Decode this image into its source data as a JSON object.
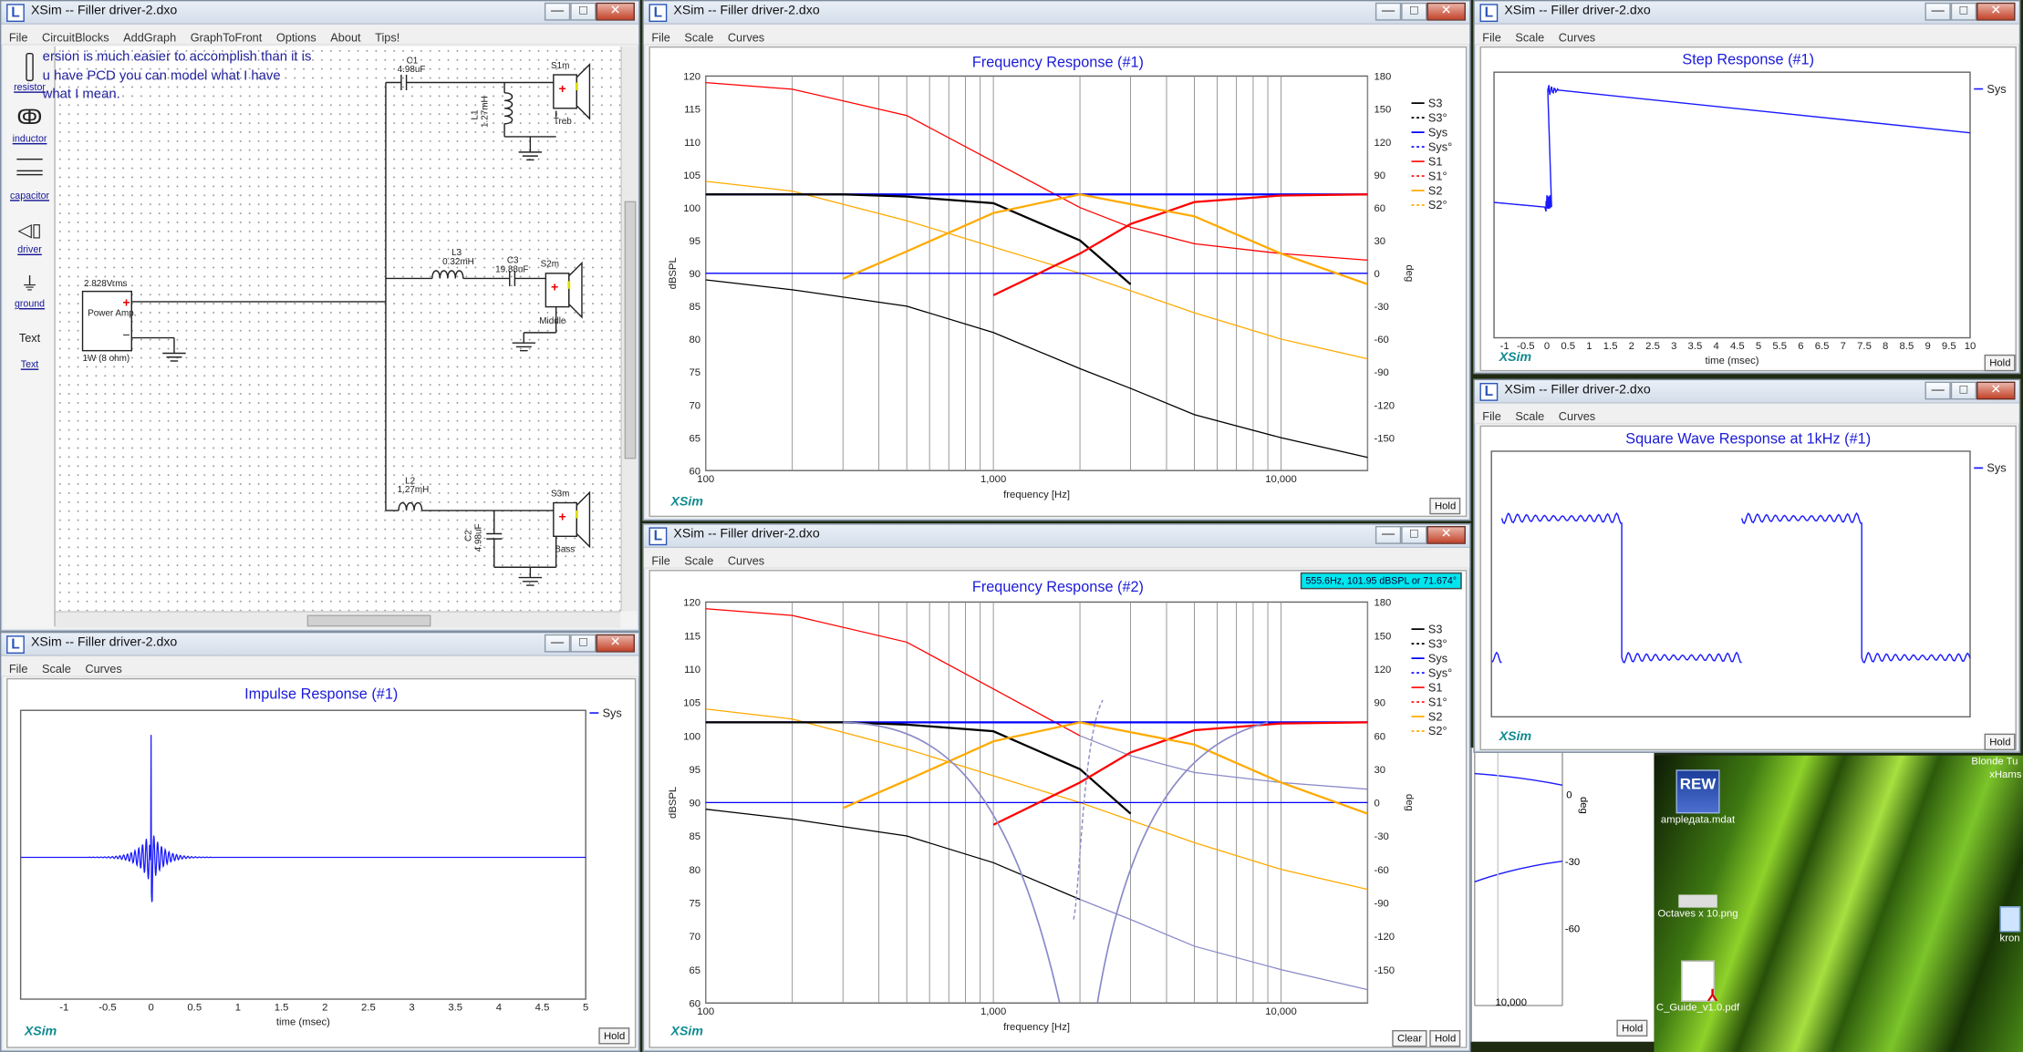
{
  "app": {
    "window_title": "XSim -- Filler driver-2.dxo",
    "icon_letter": "L"
  },
  "wbuttons": {
    "min": "—",
    "max": "□",
    "close": "✕"
  },
  "menus": {
    "main": [
      "File",
      "CircuitBlocks",
      "AddGraph",
      "GraphToFront",
      "Options",
      "About",
      "Tips!"
    ],
    "graph": [
      "File",
      "Scale",
      "Curves"
    ]
  },
  "toolbox": [
    {
      "label": "resistor"
    },
    {
      "label": "inductor"
    },
    {
      "label": "capacitor"
    },
    {
      "label": "driver"
    },
    {
      "label": "ground"
    },
    {
      "label": "Text",
      "plain": true
    },
    {
      "label": "Text"
    }
  ],
  "note_lines": [
    "ersion is much easier to accomplish than it is",
    "u have PCD you can model what I have",
    "what I mean."
  ],
  "schematic": {
    "amp_top": "2.828Vrms",
    "amp_box": "Power Amp.",
    "amp_bottom": "1W (8 ohm)",
    "C1": "C1",
    "C1v": "4.98uF",
    "L1": "L1",
    "L1v": "1.27mH",
    "S1m": "S1m",
    "Treb": "Treb",
    "L3": "L3",
    "L3v": "0.32mH",
    "C3": "C3",
    "C3v": "19.88uF",
    "S2m": "S2m",
    "Middle": "Middle",
    "L2": "L2",
    "L2v": "1.27mH",
    "C2": "C2",
    "C2v": "4.98uF",
    "S3m": "S3m",
    "Bass": "Bass"
  },
  "legend": [
    "S3",
    "S3°",
    "Sys",
    "Sys°",
    "S1",
    "S1°",
    "S2",
    "S2°"
  ],
  "colors": {
    "S3": "#000000",
    "Sys": "#0000ff",
    "S1": "#ff0000",
    "S2": "#ffaa00",
    "phase2": "#8a8ac8"
  },
  "freq1": {
    "title": "Frequency Response (#1)",
    "ylabel": "dBSPL",
    "y2label": "deg",
    "xlabel": "frequency [Hz]",
    "hold": "Hold"
  },
  "freq2": {
    "title": "Frequency Response (#2)",
    "ylabel": "dBSPL",
    "y2label": "deg",
    "xlabel": "frequency [Hz]",
    "hold": "Hold",
    "clear": "Clear",
    "tooltip": "555.6Hz, 101.95 dBSPL or 71.674°"
  },
  "step": {
    "title": "Step Response (#1)",
    "xlabel": "time (msec)",
    "legend": "Sys",
    "hold": "Hold"
  },
  "square": {
    "title": "Square Wave Response at 1kHz (#1)",
    "legend": "Sys",
    "hold": "Hold"
  },
  "impulse": {
    "title": "Impulse Response (#1)",
    "xlabel": "time (msec)",
    "legend": "Sys",
    "hold": "Hold"
  },
  "ghost": {
    "hold": "Hold",
    "x_tick": "10,000",
    "y2ticks": [
      "0",
      "-30",
      "-60"
    ],
    "y2label": "deg"
  },
  "brand": "XSim",
  "desktop": [
    {
      "label": "amplедata.mdat",
      "icon": "REW"
    },
    {
      "label": "Octaves x 10.png"
    },
    {
      "label": "C_Guide_v1.0.pdf"
    }
  ],
  "desktop_right": {
    "line1": "Blonde Tu",
    "line2": "xHams",
    "line3": "kron"
  },
  "chart_data": [
    {
      "type": "line",
      "title": "Frequency Response (#1)",
      "xlabel": "frequency [Hz]",
      "ylabel": "dBSPL",
      "y2label": "deg",
      "xscale": "log",
      "xlim": [
        100,
        20000
      ],
      "ylim": [
        60,
        120
      ],
      "y2lim": [
        -180,
        180
      ],
      "xticks": [
        "100",
        "1,000",
        "10,000"
      ],
      "yticks": [
        60,
        65,
        70,
        75,
        80,
        85,
        90,
        95,
        100,
        105,
        110,
        115,
        120
      ],
      "y2ticks": [
        -150,
        -120,
        -90,
        -60,
        -30,
        0,
        30,
        60,
        90,
        120,
        150,
        180
      ],
      "series": [
        {
          "name": "S1",
          "curve": "mag",
          "x": [
            100,
            200,
            500,
            1000,
            2000,
            3000,
            5000,
            10000,
            20000
          ],
          "y": [
            119,
            118,
            114,
            107,
            100,
            97,
            94.5,
            93,
            92
          ]
        },
        {
          "name": "S2",
          "curve": "mag",
          "x": [
            100,
            200,
            500,
            1000,
            2000,
            5000,
            10000,
            20000
          ],
          "y": [
            104,
            102.5,
            98,
            94,
            90,
            84,
            80,
            77
          ]
        },
        {
          "name": "S3",
          "curve": "mag",
          "x": [
            100,
            200,
            500,
            1000,
            2000,
            3000,
            5000,
            10000,
            20000
          ],
          "y": [
            89,
            87.5,
            85,
            81,
            75.5,
            72.5,
            68.5,
            65,
            62
          ]
        },
        {
          "name": "Sys",
          "curve": "mag",
          "x": [
            100,
            20000
          ],
          "y": [
            90,
            90
          ]
        },
        {
          "name": "Sys°",
          "curve": "phase",
          "x": [
            100,
            20000
          ],
          "y": [
            72,
            72
          ]
        },
        {
          "name": "S3°",
          "curve": "phase",
          "x": [
            100,
            300,
            500,
            1000,
            2000,
            3000
          ],
          "y": [
            72,
            72,
            70,
            64,
            30,
            -10
          ]
        },
        {
          "name": "S1°",
          "curve": "phase",
          "x": [
            1000,
            2000,
            3000,
            5000,
            10000,
            20000
          ],
          "y": [
            -20,
            18,
            45,
            65,
            71,
            72
          ]
        },
        {
          "name": "S2°",
          "curve": "phase",
          "x": [
            300,
            500,
            1000,
            2000,
            5000,
            10000,
            20000
          ],
          "y": [
            -5,
            20,
            55,
            72,
            52,
            18,
            -10
          ]
        }
      ]
    },
    {
      "type": "line",
      "title": "Frequency Response (#2)",
      "xlabel": "frequency [Hz]",
      "ylabel": "dBSPL",
      "y2label": "deg",
      "xscale": "log",
      "xlim": [
        100,
        20000
      ],
      "ylim": [
        60,
        120
      ],
      "y2lim": [
        -180,
        180
      ],
      "xticks": [
        "100",
        "1,000",
        "10,000"
      ],
      "yticks": [
        60,
        65,
        70,
        75,
        80,
        85,
        90,
        95,
        100,
        105,
        110,
        115,
        120
      ],
      "y2ticks": [
        -150,
        -120,
        -90,
        -60,
        -30,
        0,
        30,
        60,
        90,
        120,
        150,
        180
      ],
      "series": [
        {
          "name": "S1",
          "curve": "mag",
          "x": [
            100,
            200,
            500,
            1000,
            2000,
            3000,
            5000,
            10000,
            20000
          ],
          "y": [
            119,
            118,
            114,
            107,
            100,
            97,
            94.5,
            93,
            92
          ]
        },
        {
          "name": "S2",
          "curve": "mag",
          "x": [
            100,
            200,
            500,
            1000,
            2000,
            5000,
            10000,
            20000
          ],
          "y": [
            104,
            102.5,
            98,
            94,
            90,
            84,
            80,
            77
          ]
        },
        {
          "name": "S3",
          "curve": "mag",
          "x": [
            100,
            200,
            500,
            1000,
            2000,
            3000,
            5000,
            10000,
            20000
          ],
          "y": [
            89,
            87.5,
            85,
            81,
            75.5,
            72.5,
            68.5,
            65,
            62
          ]
        },
        {
          "name": "Sys",
          "curve": "mag",
          "x": [
            100,
            20000
          ],
          "y": [
            90,
            90
          ]
        },
        {
          "name": "Sys°",
          "curve": "phase",
          "x": [
            100,
            20000
          ],
          "y": [
            72,
            72
          ]
        },
        {
          "name": "S3°",
          "curve": "phase",
          "x": [
            100,
            300,
            500,
            1000,
            2000,
            3000
          ],
          "y": [
            72,
            72,
            70,
            64,
            30,
            -10
          ]
        },
        {
          "name": "S1°",
          "curve": "phase",
          "x": [
            1000,
            2000,
            3000,
            5000,
            10000,
            20000
          ],
          "y": [
            -20,
            18,
            45,
            65,
            71,
            72
          ]
        },
        {
          "name": "S2°",
          "curve": "phase",
          "x": [
            300,
            500,
            1000,
            2000,
            5000,
            10000,
            20000
          ],
          "y": [
            -5,
            20,
            55,
            72,
            52,
            18,
            -10
          ]
        }
      ]
    },
    {
      "type": "line",
      "title": "Step Response (#1)",
      "xlabel": "time (msec)",
      "xlim": [
        -1.25,
        10
      ],
      "xticks": [
        -1,
        -0.5,
        0,
        0.5,
        1,
        1.5,
        2,
        2.5,
        3,
        3.5,
        4,
        4.5,
        5,
        5.5,
        6,
        6.5,
        7,
        7.5,
        8,
        8.5,
        9,
        9.5,
        10
      ],
      "series": [
        {
          "name": "Sys"
        }
      ]
    },
    {
      "type": "line",
      "title": "Square Wave Response at 1kHz (#1)",
      "series": [
        {
          "name": "Sys"
        }
      ]
    },
    {
      "type": "line",
      "title": "Impulse Response (#1)",
      "xlabel": "time (msec)",
      "xlim": [
        -1.5,
        5
      ],
      "xticks": [
        -1,
        -0.5,
        0,
        0.5,
        1,
        1.5,
        2,
        2.5,
        3,
        3.5,
        4,
        4.5,
        5
      ],
      "series": [
        {
          "name": "Sys"
        }
      ]
    }
  ]
}
